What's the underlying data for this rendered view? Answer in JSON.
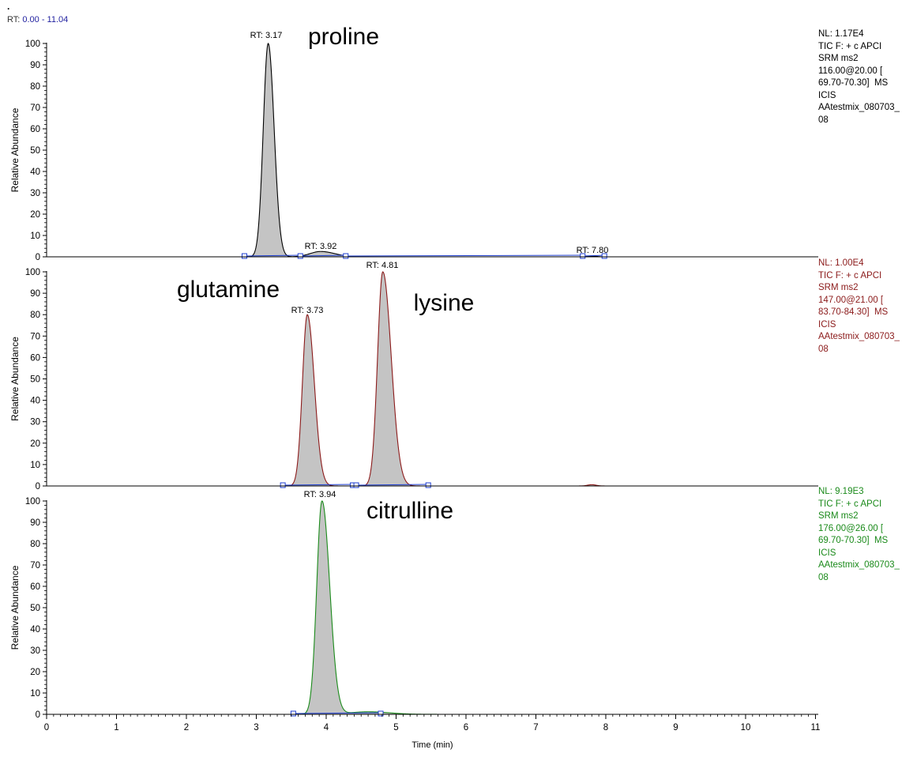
{
  "header": {
    "mark": ".",
    "range_prefix": "RT: ",
    "range_value": "0.00 - 11.04"
  },
  "colors": {
    "panel_1_trace": "#000000",
    "panel_2_trace": "#8b1a1a",
    "panel_3_trace": "#1a8a1a",
    "peak_fill": "#c4c4c4",
    "baseline_marker": "#1f3fd0"
  },
  "chart_data": [
    {
      "type": "line",
      "ylabel": "Relative Abundance",
      "xlabel": "",
      "xlim": [
        0,
        11.04
      ],
      "ylim": [
        0,
        100
      ],
      "y_ticks": [
        0,
        10,
        20,
        30,
        40,
        50,
        60,
        70,
        80,
        90,
        100
      ],
      "annotation": "proline",
      "info_lines": [
        "NL: 1.17E4",
        "TIC F: + c APCI",
        "SRM ms2",
        "116.00@20.00 [",
        "69.70-70.30]  MS",
        "ICIS",
        "AAtestmix_080703_",
        "08"
      ],
      "peaks": [
        {
          "label": "RT: 3.17",
          "rt": 3.17,
          "height": 100,
          "sigma_left": 0.07,
          "sigma_right": 0.085
        },
        {
          "label": "RT: 3.92",
          "rt": 3.92,
          "height": 2.5,
          "sigma_left": 0.15,
          "sigma_right": 0.2
        },
        {
          "label": "RT: 7.80",
          "rt": 7.8,
          "height": 0.4,
          "sigma_left": 0.06,
          "sigma_right": 0.06
        }
      ],
      "baseline_markers": [
        2.83,
        3.63,
        4.28,
        7.67,
        7.98
      ]
    },
    {
      "type": "line",
      "ylabel": "Relative Abundance",
      "xlabel": "",
      "xlim": [
        0,
        11.04
      ],
      "ylim": [
        0,
        100
      ],
      "y_ticks": [
        0,
        10,
        20,
        30,
        40,
        50,
        60,
        70,
        80,
        90,
        100
      ],
      "annotations": [
        "glutamine",
        "lysine"
      ],
      "info_lines": [
        "NL: 1.00E4",
        "TIC F: + c APCI",
        "SRM ms2",
        "147.00@21.00 [",
        "83.70-84.30]  MS",
        "ICIS",
        "AAtestmix_080703_",
        "08"
      ],
      "peaks": [
        {
          "label": "RT: 3.73",
          "rt": 3.73,
          "height": 80,
          "sigma_left": 0.07,
          "sigma_right": 0.1
        },
        {
          "label": "RT: 4.81",
          "rt": 4.81,
          "height": 100,
          "sigma_left": 0.075,
          "sigma_right": 0.12
        },
        {
          "label": "",
          "rt": 7.8,
          "height": 0.6,
          "sigma_left": 0.06,
          "sigma_right": 0.06
        }
      ],
      "baseline_markers": [
        3.38,
        4.38,
        4.43,
        5.46
      ]
    },
    {
      "type": "line",
      "ylabel": "Relative Abundance",
      "xlabel": "Time (min)",
      "xlim": [
        0,
        11.04
      ],
      "ylim": [
        0,
        100
      ],
      "y_ticks": [
        0,
        10,
        20,
        30,
        40,
        50,
        60,
        70,
        80,
        90,
        100
      ],
      "x_ticks": [
        0,
        1,
        2,
        3,
        4,
        5,
        6,
        7,
        8,
        9,
        10,
        11
      ],
      "annotation": "citrulline",
      "info_lines": [
        "NL: 9.19E3",
        "TIC F: + c APCI",
        "SRM ms2",
        "176.00@26.00 [",
        "69.70-70.30]  MS",
        "ICIS",
        "AAtestmix_080703_",
        "08"
      ],
      "peaks": [
        {
          "label": "RT: 3.94",
          "rt": 3.94,
          "height": 100,
          "sigma_left": 0.075,
          "sigma_right": 0.11
        },
        {
          "label": "",
          "rt": 4.6,
          "height": 1.2,
          "sigma_left": 0.25,
          "sigma_right": 0.3
        }
      ],
      "baseline_markers": [
        3.53,
        4.78
      ]
    }
  ]
}
